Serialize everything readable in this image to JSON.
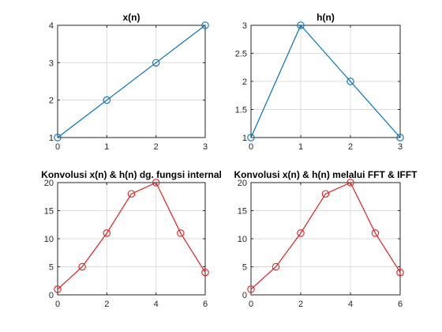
{
  "chart_data": [
    {
      "type": "line",
      "title": "x(n)",
      "xlabel": "",
      "ylabel": "",
      "x": [
        0,
        1,
        2,
        3
      ],
      "series": [
        {
          "values": [
            1,
            2,
            3,
            4
          ],
          "color": "#0072BD",
          "marker": "circle"
        }
      ],
      "xlim": [
        0,
        3
      ],
      "ylim": [
        1,
        4
      ],
      "xticks": [
        0,
        1,
        2,
        3
      ],
      "yticks": [
        1,
        2,
        3,
        4
      ],
      "xtick_labels": [
        "0",
        "1",
        "2",
        "3"
      ],
      "ytick_labels": [
        "1",
        "2",
        "3",
        "4"
      ],
      "grid": true
    },
    {
      "type": "line",
      "title": "h(n)",
      "xlabel": "",
      "ylabel": "",
      "x": [
        0,
        1,
        2,
        3
      ],
      "series": [
        {
          "values": [
            1,
            3,
            2,
            1
          ],
          "color": "#0072BD",
          "marker": "circle"
        }
      ],
      "xlim": [
        0,
        3
      ],
      "ylim": [
        1,
        3
      ],
      "xticks": [
        0,
        1,
        2,
        3
      ],
      "yticks": [
        1,
        1.5,
        2,
        2.5,
        3
      ],
      "xtick_labels": [
        "0",
        "1",
        "2",
        "3"
      ],
      "ytick_labels": [
        "1",
        "1.5",
        "2",
        "2.5",
        "3"
      ],
      "grid": true
    },
    {
      "type": "line",
      "title": "Konvolusi x(n) & h(n) dg. fungsi internal",
      "xlabel": "",
      "ylabel": "",
      "x": [
        0,
        1,
        2,
        3,
        4,
        5,
        6
      ],
      "series": [
        {
          "values": [
            1,
            5,
            11,
            18,
            20,
            11,
            4
          ],
          "color": "#E02020",
          "marker": "circle"
        }
      ],
      "xlim": [
        0,
        6
      ],
      "ylim": [
        0,
        20
      ],
      "xticks": [
        0,
        2,
        4,
        6
      ],
      "yticks": [
        0,
        5,
        10,
        15,
        20
      ],
      "xtick_labels": [
        "0",
        "2",
        "4",
        "6"
      ],
      "ytick_labels": [
        "0",
        "5",
        "10",
        "15",
        "20"
      ],
      "grid": true
    },
    {
      "type": "line",
      "title": "Konvolusi x(n) & h(n) melalui FFT & IFFT",
      "xlabel": "",
      "ylabel": "",
      "x": [
        0,
        1,
        2,
        3,
        4,
        5,
        6
      ],
      "series": [
        {
          "values": [
            1,
            5,
            11,
            18,
            20,
            11,
            4
          ],
          "color": "#E02020",
          "marker": "circle"
        }
      ],
      "xlim": [
        0,
        6
      ],
      "ylim": [
        0,
        20
      ],
      "xticks": [
        0,
        2,
        4,
        6
      ],
      "yticks": [
        0,
        5,
        10,
        15,
        20
      ],
      "xtick_labels": [
        "0",
        "2",
        "4",
        "6"
      ],
      "ytick_labels": [
        "0",
        "5",
        "10",
        "15",
        "20"
      ],
      "grid": true
    }
  ]
}
